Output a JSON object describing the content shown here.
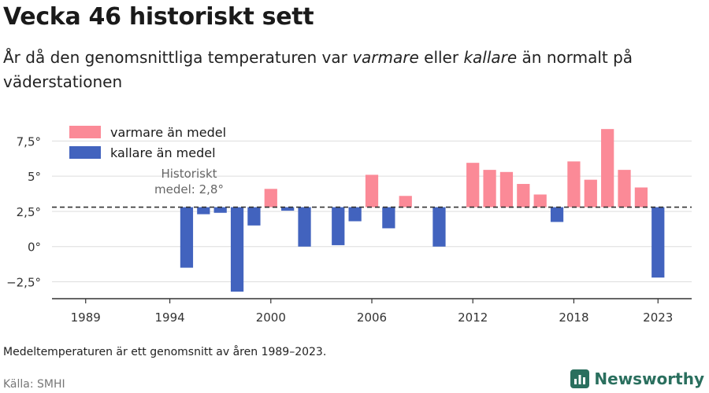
{
  "title": "Vecka 46 historiskt sett",
  "subtitle": {
    "before": "År då den genomsnittliga temperaturen var ",
    "warm_word": "varmare",
    "middle": " eller ",
    "cold_word": "kallare",
    "after": " än normalt på väderstationen"
  },
  "note": "Medeltemperaturen är ett genomsnitt av åren 1989–2023.",
  "source": "Källa: SMHI",
  "brand": "Newsworthy",
  "colors": {
    "warm": "#fb8a97",
    "cold": "#4263be",
    "brand": "#2a6f5e"
  },
  "chart_data": {
    "type": "bar",
    "baseline": 2.8,
    "baseline_label_line1": "Historiskt",
    "baseline_label_line2": "medel: 2,8°",
    "ylim": [
      -3.7,
      9.7
    ],
    "xlim": [
      1987,
      2025
    ],
    "yticks": [
      {
        "value": -2.5,
        "label": "−2,5°"
      },
      {
        "value": 0,
        "label": "0°"
      },
      {
        "value": 2.5,
        "label": "2,5°"
      },
      {
        "value": 5,
        "label": "5°"
      },
      {
        "value": 7.5,
        "label": "7,5°"
      }
    ],
    "xticks": [
      {
        "value": 1989,
        "label": "1989"
      },
      {
        "value": 1994,
        "label": "1994"
      },
      {
        "value": 2000,
        "label": "2000"
      },
      {
        "value": 2006,
        "label": "2006"
      },
      {
        "value": 2012,
        "label": "2012"
      },
      {
        "value": 2018,
        "label": "2018"
      },
      {
        "value": 2023,
        "label": "2023"
      }
    ],
    "legend": [
      {
        "key": "warm",
        "label": "varmare än medel"
      },
      {
        "key": "cold",
        "label": "kallare än medel"
      }
    ],
    "years": [
      1995,
      1996,
      1997,
      1998,
      1999,
      2000,
      2001,
      2002,
      2004,
      2005,
      2006,
      2007,
      2008,
      2010,
      2012,
      2013,
      2014,
      2015,
      2016,
      2017,
      2018,
      2019,
      2020,
      2021,
      2022,
      2023
    ],
    "values": [
      -1.5,
      2.3,
      2.4,
      -3.2,
      1.5,
      4.1,
      2.55,
      0.0,
      0.1,
      1.8,
      5.1,
      1.3,
      3.6,
      0.0,
      5.95,
      5.45,
      5.3,
      4.45,
      3.7,
      1.75,
      6.05,
      4.75,
      8.35,
      5.45,
      4.2,
      -2.2
    ]
  }
}
